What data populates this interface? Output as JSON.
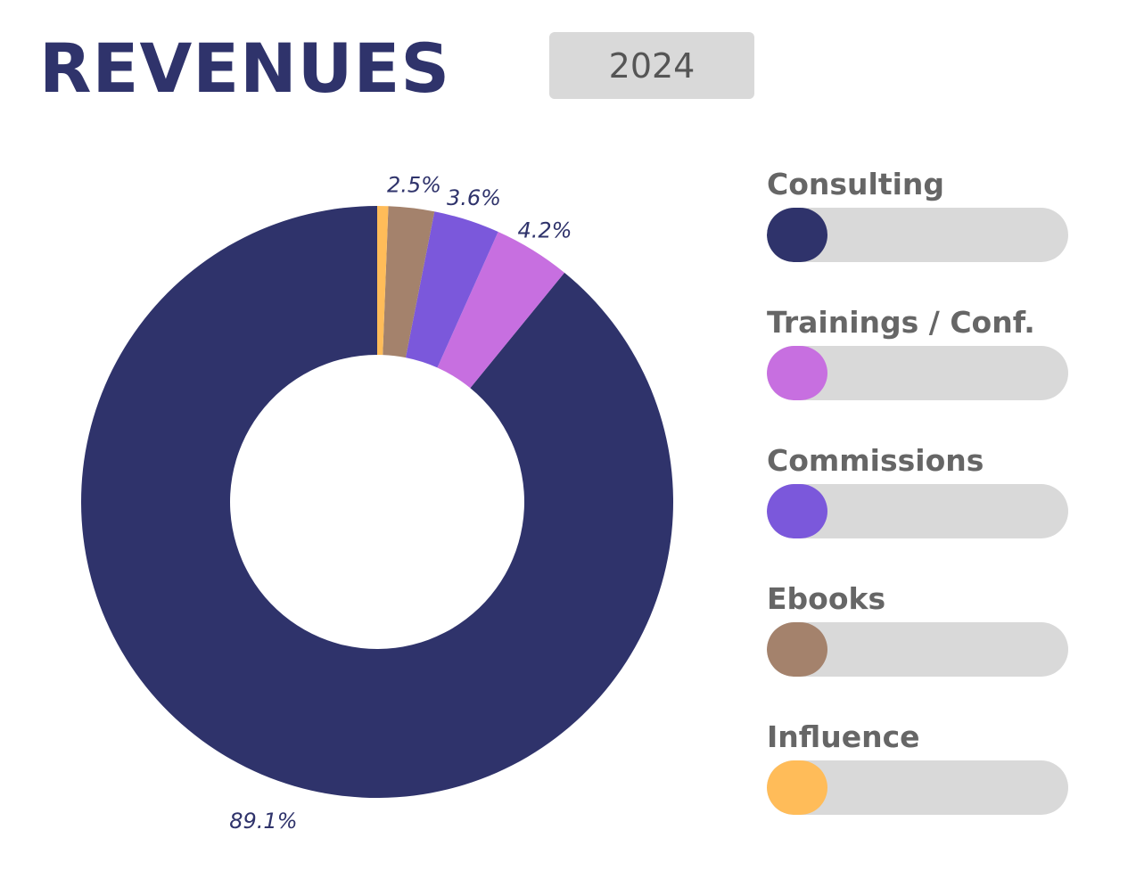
{
  "header": {
    "title": "REVENUES",
    "year": "2024"
  },
  "chart_data": {
    "type": "pie",
    "donut": true,
    "categories": [
      "Consulting",
      "Trainings / Conf.",
      "Commissions",
      "Ebooks",
      "Influence"
    ],
    "values": [
      89.1,
      4.2,
      3.6,
      2.5,
      0.6
    ],
    "labels": [
      "89.1%",
      "4.2%",
      "3.6%",
      "2.5%",
      ""
    ],
    "colors": [
      "#2f336b",
      "#c76fe0",
      "#7b58db",
      "#a4826c",
      "#ffbc59"
    ],
    "legend": "right"
  },
  "legend": {
    "items": [
      {
        "label": "Consulting",
        "color": "#2f336b",
        "level": 0.2
      },
      {
        "label": "Trainings / Conf.",
        "color": "#c76fe0",
        "level": 0.2
      },
      {
        "label": "Commissions",
        "color": "#7b58db",
        "level": 0.2
      },
      {
        "label": "Ebooks",
        "color": "#a4826c",
        "level": 0.2
      },
      {
        "label": "Influence",
        "color": "#ffbc59",
        "level": 0.2
      }
    ]
  }
}
